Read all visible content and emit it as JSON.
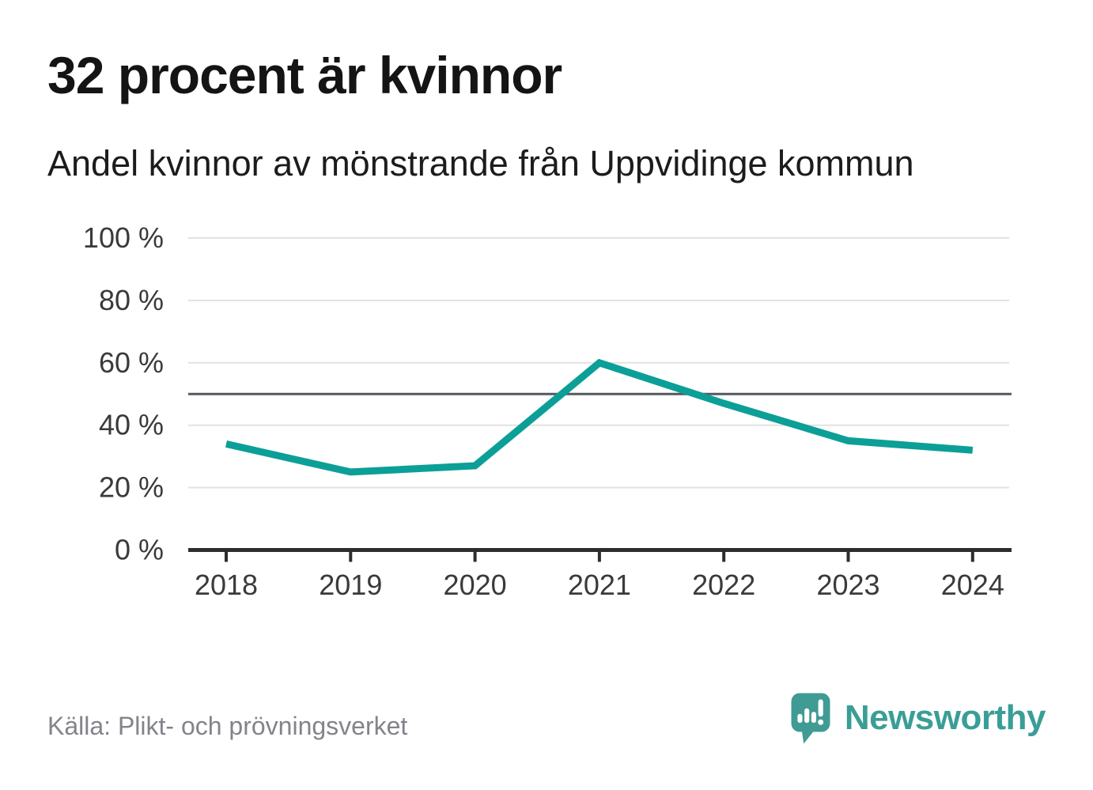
{
  "header": {
    "title": "32 procent är kvinnor",
    "subtitle": "Andel kvinnor av mönstrande från Uppvidinge kommun"
  },
  "chart_data": {
    "type": "line",
    "title": "32 procent är kvinnor",
    "subtitle": "Andel kvinnor av mönstrande från Uppvidinge kommun",
    "x": [
      2018,
      2019,
      2020,
      2021,
      2022,
      2023,
      2024
    ],
    "series": [
      {
        "name": "Andel kvinnor av mönstrande",
        "values": [
          34,
          25,
          27,
          60,
          47,
          35,
          32
        ]
      }
    ],
    "unit": "%",
    "ylim": [
      0,
      100
    ],
    "yticks": [
      0,
      20,
      40,
      60,
      80,
      100
    ],
    "ytick_labels": [
      "0 %",
      "20 %",
      "40 %",
      "60 %",
      "80 %",
      "100 %"
    ],
    "reference_line": 50,
    "grid": "horizontal",
    "legend": "none"
  },
  "footer": {
    "source": "Källa: Plikt- och prövningsverket",
    "brand": "Newsworthy"
  },
  "colors": {
    "line": "#0c9f97",
    "brand": "#3a9e96",
    "grid": "#e2e2e2",
    "reference": "#55595e",
    "axis": "#2d2d2d",
    "tick_text": "#3a3a3a",
    "muted": "#83838b"
  }
}
